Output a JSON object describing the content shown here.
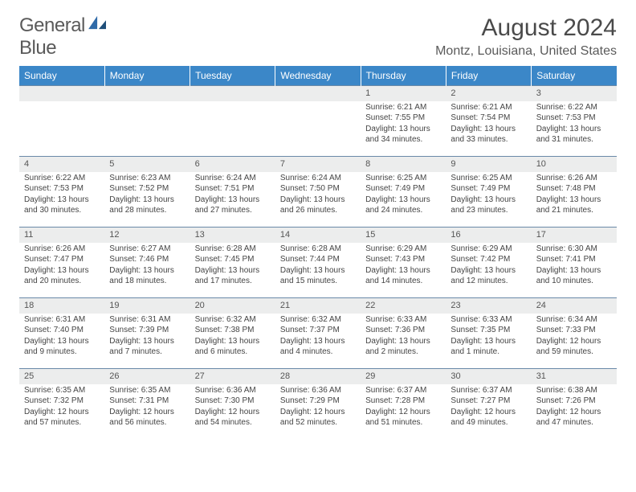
{
  "logo": {
    "word1": "General",
    "word2": "Blue"
  },
  "title": "August 2024",
  "location": "Montz, Louisiana, United States",
  "colors": {
    "header_bg": "#3b87c8",
    "header_text": "#ffffff",
    "daynum_bg": "#eceded",
    "row_border": "#6a89a8",
    "body_text": "#444444",
    "logo_gray": "#5a5a5a",
    "logo_blue": "#2f6aa8"
  },
  "weekdays": [
    "Sunday",
    "Monday",
    "Tuesday",
    "Wednesday",
    "Thursday",
    "Friday",
    "Saturday"
  ],
  "weeks": [
    [
      null,
      null,
      null,
      null,
      {
        "d": "1",
        "sr": "Sunrise: 6:21 AM",
        "ss": "Sunset: 7:55 PM",
        "dl1": "Daylight: 13 hours",
        "dl2": "and 34 minutes."
      },
      {
        "d": "2",
        "sr": "Sunrise: 6:21 AM",
        "ss": "Sunset: 7:54 PM",
        "dl1": "Daylight: 13 hours",
        "dl2": "and 33 minutes."
      },
      {
        "d": "3",
        "sr": "Sunrise: 6:22 AM",
        "ss": "Sunset: 7:53 PM",
        "dl1": "Daylight: 13 hours",
        "dl2": "and 31 minutes."
      }
    ],
    [
      {
        "d": "4",
        "sr": "Sunrise: 6:22 AM",
        "ss": "Sunset: 7:53 PM",
        "dl1": "Daylight: 13 hours",
        "dl2": "and 30 minutes."
      },
      {
        "d": "5",
        "sr": "Sunrise: 6:23 AM",
        "ss": "Sunset: 7:52 PM",
        "dl1": "Daylight: 13 hours",
        "dl2": "and 28 minutes."
      },
      {
        "d": "6",
        "sr": "Sunrise: 6:24 AM",
        "ss": "Sunset: 7:51 PM",
        "dl1": "Daylight: 13 hours",
        "dl2": "and 27 minutes."
      },
      {
        "d": "7",
        "sr": "Sunrise: 6:24 AM",
        "ss": "Sunset: 7:50 PM",
        "dl1": "Daylight: 13 hours",
        "dl2": "and 26 minutes."
      },
      {
        "d": "8",
        "sr": "Sunrise: 6:25 AM",
        "ss": "Sunset: 7:49 PM",
        "dl1": "Daylight: 13 hours",
        "dl2": "and 24 minutes."
      },
      {
        "d": "9",
        "sr": "Sunrise: 6:25 AM",
        "ss": "Sunset: 7:49 PM",
        "dl1": "Daylight: 13 hours",
        "dl2": "and 23 minutes."
      },
      {
        "d": "10",
        "sr": "Sunrise: 6:26 AM",
        "ss": "Sunset: 7:48 PM",
        "dl1": "Daylight: 13 hours",
        "dl2": "and 21 minutes."
      }
    ],
    [
      {
        "d": "11",
        "sr": "Sunrise: 6:26 AM",
        "ss": "Sunset: 7:47 PM",
        "dl1": "Daylight: 13 hours",
        "dl2": "and 20 minutes."
      },
      {
        "d": "12",
        "sr": "Sunrise: 6:27 AM",
        "ss": "Sunset: 7:46 PM",
        "dl1": "Daylight: 13 hours",
        "dl2": "and 18 minutes."
      },
      {
        "d": "13",
        "sr": "Sunrise: 6:28 AM",
        "ss": "Sunset: 7:45 PM",
        "dl1": "Daylight: 13 hours",
        "dl2": "and 17 minutes."
      },
      {
        "d": "14",
        "sr": "Sunrise: 6:28 AM",
        "ss": "Sunset: 7:44 PM",
        "dl1": "Daylight: 13 hours",
        "dl2": "and 15 minutes."
      },
      {
        "d": "15",
        "sr": "Sunrise: 6:29 AM",
        "ss": "Sunset: 7:43 PM",
        "dl1": "Daylight: 13 hours",
        "dl2": "and 14 minutes."
      },
      {
        "d": "16",
        "sr": "Sunrise: 6:29 AM",
        "ss": "Sunset: 7:42 PM",
        "dl1": "Daylight: 13 hours",
        "dl2": "and 12 minutes."
      },
      {
        "d": "17",
        "sr": "Sunrise: 6:30 AM",
        "ss": "Sunset: 7:41 PM",
        "dl1": "Daylight: 13 hours",
        "dl2": "and 10 minutes."
      }
    ],
    [
      {
        "d": "18",
        "sr": "Sunrise: 6:31 AM",
        "ss": "Sunset: 7:40 PM",
        "dl1": "Daylight: 13 hours",
        "dl2": "and 9 minutes."
      },
      {
        "d": "19",
        "sr": "Sunrise: 6:31 AM",
        "ss": "Sunset: 7:39 PM",
        "dl1": "Daylight: 13 hours",
        "dl2": "and 7 minutes."
      },
      {
        "d": "20",
        "sr": "Sunrise: 6:32 AM",
        "ss": "Sunset: 7:38 PM",
        "dl1": "Daylight: 13 hours",
        "dl2": "and 6 minutes."
      },
      {
        "d": "21",
        "sr": "Sunrise: 6:32 AM",
        "ss": "Sunset: 7:37 PM",
        "dl1": "Daylight: 13 hours",
        "dl2": "and 4 minutes."
      },
      {
        "d": "22",
        "sr": "Sunrise: 6:33 AM",
        "ss": "Sunset: 7:36 PM",
        "dl1": "Daylight: 13 hours",
        "dl2": "and 2 minutes."
      },
      {
        "d": "23",
        "sr": "Sunrise: 6:33 AM",
        "ss": "Sunset: 7:35 PM",
        "dl1": "Daylight: 13 hours",
        "dl2": "and 1 minute."
      },
      {
        "d": "24",
        "sr": "Sunrise: 6:34 AM",
        "ss": "Sunset: 7:33 PM",
        "dl1": "Daylight: 12 hours",
        "dl2": "and 59 minutes."
      }
    ],
    [
      {
        "d": "25",
        "sr": "Sunrise: 6:35 AM",
        "ss": "Sunset: 7:32 PM",
        "dl1": "Daylight: 12 hours",
        "dl2": "and 57 minutes."
      },
      {
        "d": "26",
        "sr": "Sunrise: 6:35 AM",
        "ss": "Sunset: 7:31 PM",
        "dl1": "Daylight: 12 hours",
        "dl2": "and 56 minutes."
      },
      {
        "d": "27",
        "sr": "Sunrise: 6:36 AM",
        "ss": "Sunset: 7:30 PM",
        "dl1": "Daylight: 12 hours",
        "dl2": "and 54 minutes."
      },
      {
        "d": "28",
        "sr": "Sunrise: 6:36 AM",
        "ss": "Sunset: 7:29 PM",
        "dl1": "Daylight: 12 hours",
        "dl2": "and 52 minutes."
      },
      {
        "d": "29",
        "sr": "Sunrise: 6:37 AM",
        "ss": "Sunset: 7:28 PM",
        "dl1": "Daylight: 12 hours",
        "dl2": "and 51 minutes."
      },
      {
        "d": "30",
        "sr": "Sunrise: 6:37 AM",
        "ss": "Sunset: 7:27 PM",
        "dl1": "Daylight: 12 hours",
        "dl2": "and 49 minutes."
      },
      {
        "d": "31",
        "sr": "Sunrise: 6:38 AM",
        "ss": "Sunset: 7:26 PM",
        "dl1": "Daylight: 12 hours",
        "dl2": "and 47 minutes."
      }
    ]
  ]
}
